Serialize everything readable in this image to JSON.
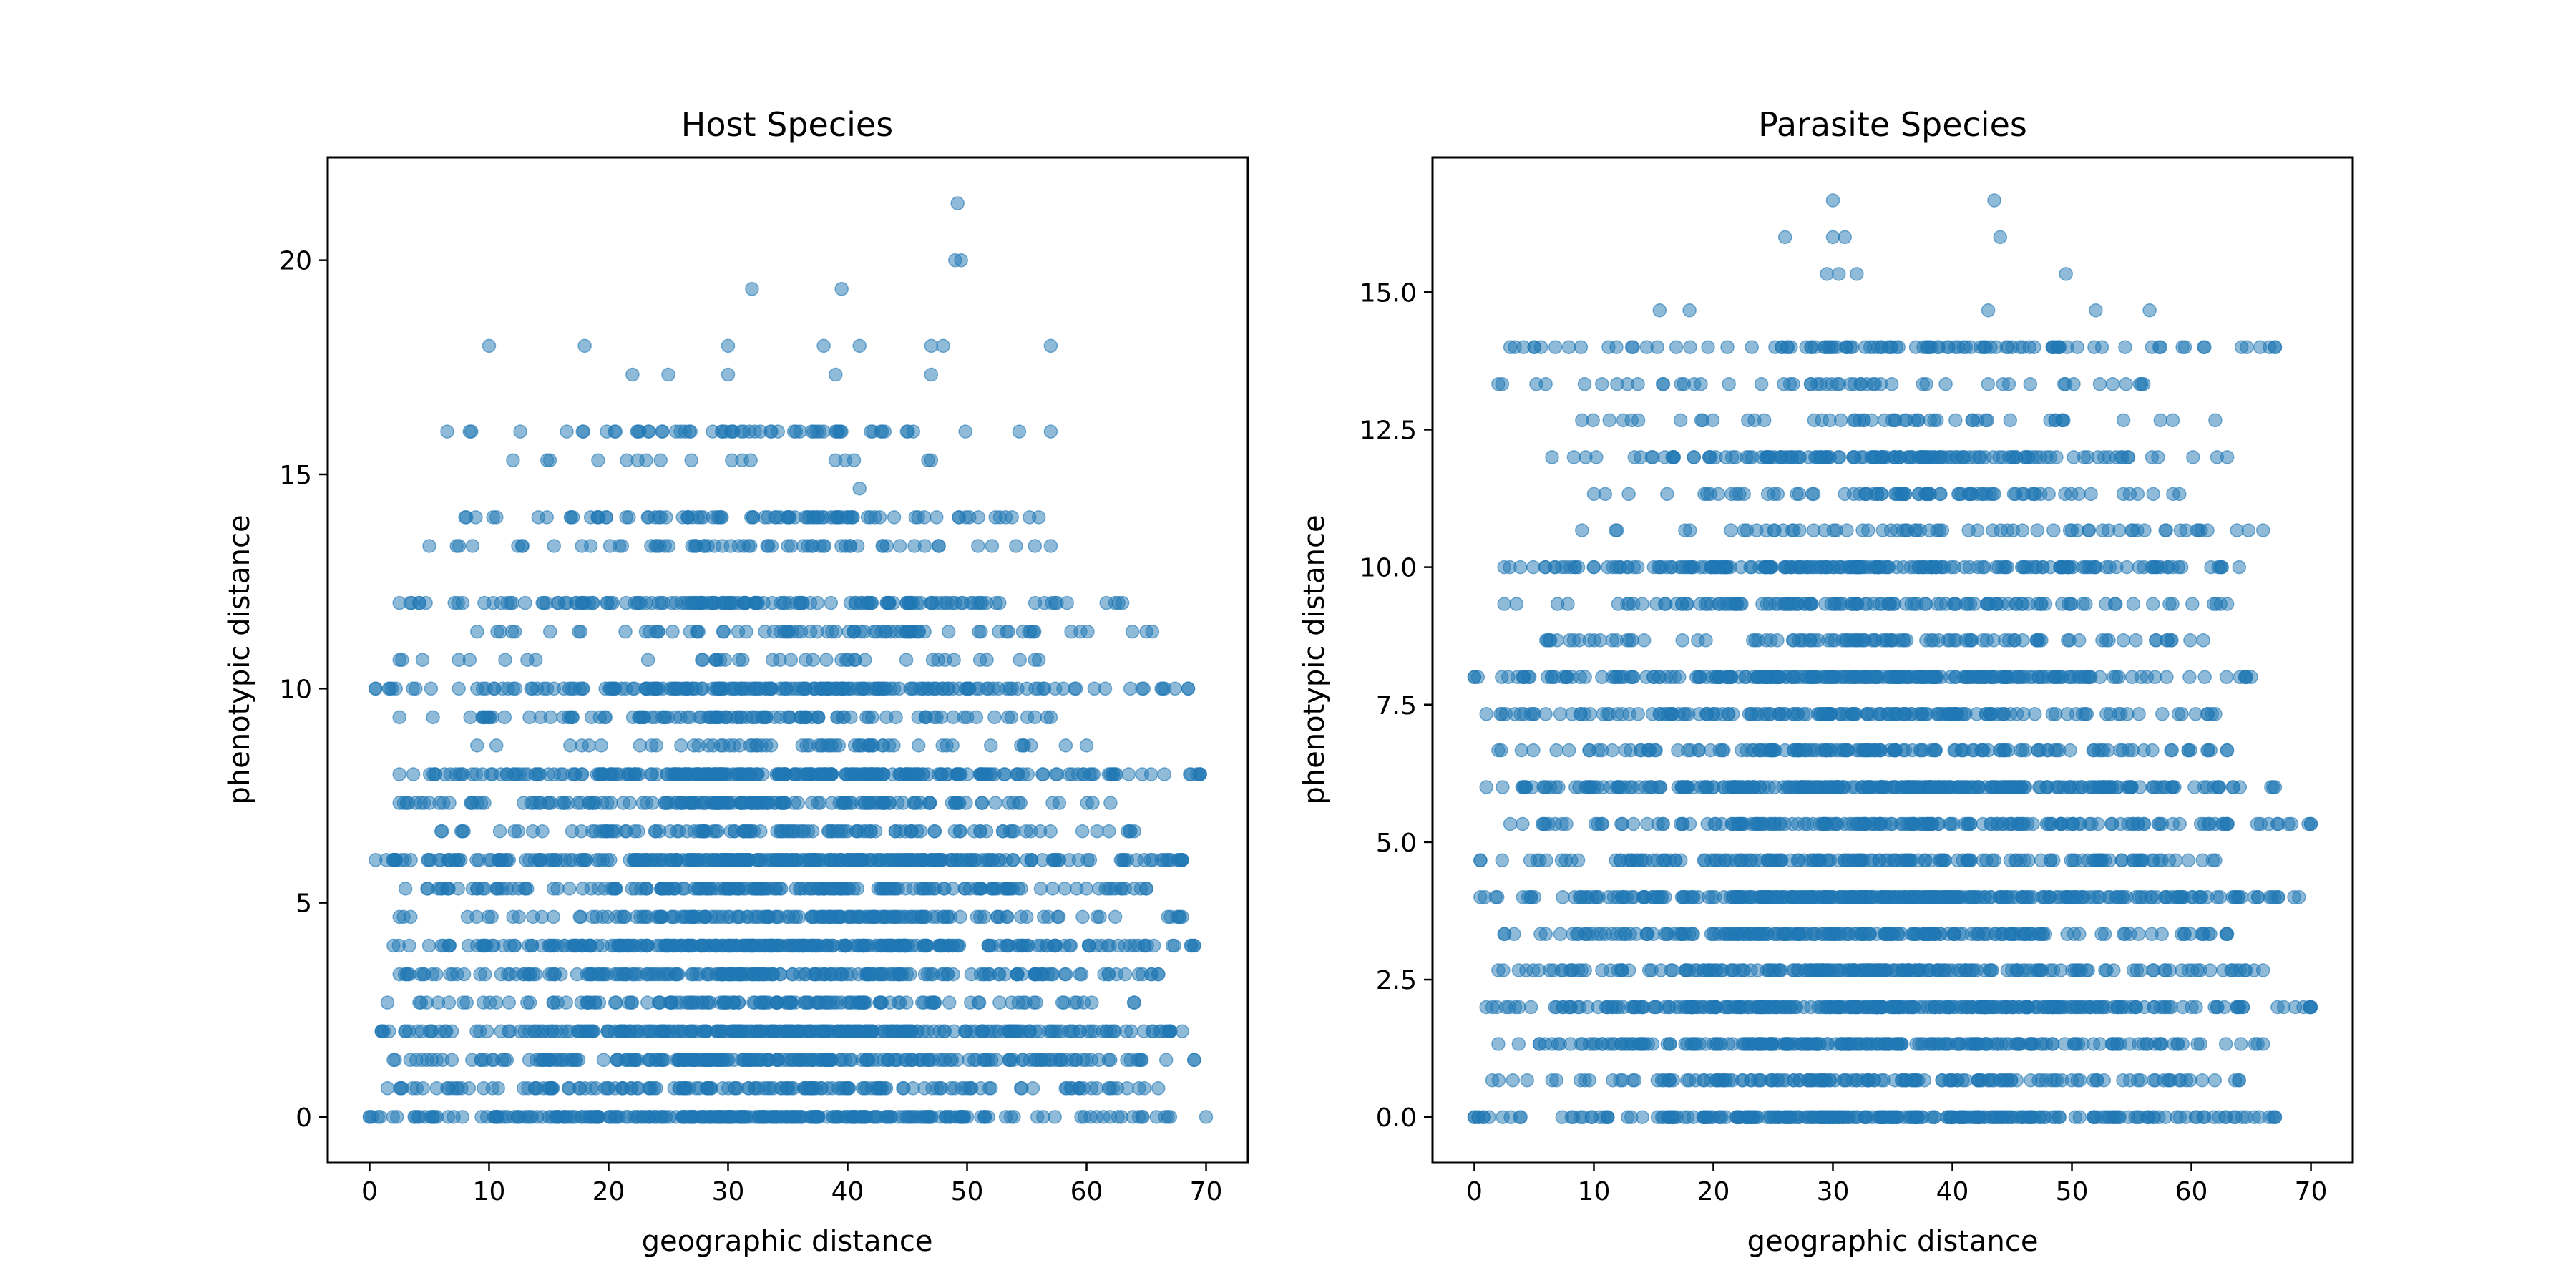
{
  "chart_data": [
    {
      "type": "scatter",
      "title": "Host Species",
      "xlabel": "geographic distance",
      "ylabel": "phenotypic distance",
      "xlim": [
        -3.5,
        73.5
      ],
      "ylim": [
        -1.07,
        22.4
      ],
      "xticks": [
        0,
        10,
        20,
        30,
        40,
        50,
        60,
        70
      ],
      "xtick_labels": [
        "0",
        "10",
        "20",
        "30",
        "40",
        "50",
        "60",
        "70"
      ],
      "yticks": [
        0,
        5,
        10,
        15,
        20
      ],
      "ytick_labels": [
        "0",
        "5",
        "10",
        "15",
        "20"
      ],
      "grid": false,
      "legend": "none",
      "marker_color": "#1f77b4",
      "marker_alpha": 0.5,
      "bands": [
        {
          "y": 0,
          "x": [
            0,
            67
          ],
          "density": 0.95
        },
        {
          "y": 0.67,
          "x": [
            1.5,
            66
          ],
          "density": 0.55
        },
        {
          "y": 1.33,
          "x": [
            2,
            69
          ],
          "density": 0.75
        },
        {
          "y": 2,
          "x": [
            1,
            68
          ],
          "density": 1.0
        },
        {
          "y": 2.67,
          "x": [
            1.5,
            64
          ],
          "density": 0.5
        },
        {
          "y": 3.33,
          "x": [
            2.5,
            66
          ],
          "density": 0.75
        },
        {
          "y": 4,
          "x": [
            2,
            69
          ],
          "density": 1.0
        },
        {
          "y": 4.67,
          "x": [
            2.5,
            68
          ],
          "density": 0.55
        },
        {
          "y": 5.33,
          "x": [
            3,
            65
          ],
          "density": 0.7
        },
        {
          "y": 6,
          "x": [
            0.5,
            68
          ],
          "density": 1.0
        },
        {
          "y": 6.67,
          "x": [
            6,
            64
          ],
          "density": 0.45
        },
        {
          "y": 7.33,
          "x": [
            2.5,
            62
          ],
          "density": 0.6
        },
        {
          "y": 8,
          "x": [
            2.5,
            69.5
          ],
          "density": 0.9
        },
        {
          "y": 8.67,
          "x": [
            9,
            60
          ],
          "density": 0.25
        },
        {
          "y": 9.33,
          "x": [
            2.5,
            57
          ],
          "density": 0.45
        },
        {
          "y": 10,
          "x": [
            0.5,
            68.5
          ],
          "density": 0.65
        },
        {
          "y": 10.67,
          "x": [
            2.5,
            56
          ],
          "density": 0.15
        },
        {
          "y": 11.33,
          "x": [
            9,
            65
          ],
          "density": 0.3
        },
        {
          "y": 12,
          "x": [
            2.5,
            63
          ],
          "density": 0.55
        },
        {
          "y": 13.33,
          "x": [
            5,
            57
          ],
          "density": 0.25
        },
        {
          "y": 14,
          "x": [
            8,
            56
          ],
          "density": 0.4
        },
        {
          "y": 15.33,
          "x": [
            12,
            47
          ],
          "density": 0.08
        },
        {
          "y": 16,
          "x": [
            6.5,
            57
          ],
          "density": 0.25
        }
      ],
      "points": [
        {
          "x": 10,
          "y": 18
        },
        {
          "x": 18,
          "y": 18
        },
        {
          "x": 30,
          "y": 18
        },
        {
          "x": 38,
          "y": 18
        },
        {
          "x": 41,
          "y": 18
        },
        {
          "x": 47,
          "y": 18
        },
        {
          "x": 48,
          "y": 18
        },
        {
          "x": 57,
          "y": 18
        },
        {
          "x": 25,
          "y": 17.33
        },
        {
          "x": 30,
          "y": 17.33
        },
        {
          "x": 39,
          "y": 17.33
        },
        {
          "x": 47,
          "y": 17.33
        },
        {
          "x": 32,
          "y": 19.33
        },
        {
          "x": 39.5,
          "y": 19.33
        },
        {
          "x": 49,
          "y": 20
        },
        {
          "x": 49.5,
          "y": 20
        },
        {
          "x": 49.2,
          "y": 21.33
        },
        {
          "x": 41,
          "y": 14.67
        },
        {
          "x": 22,
          "y": 17.33
        },
        {
          "x": 0,
          "y": 0
        },
        {
          "x": 70,
          "y": 0
        },
        {
          "x": 69,
          "y": 1.33
        },
        {
          "x": 69,
          "y": 4
        },
        {
          "x": 69.5,
          "y": 8
        },
        {
          "x": 68.5,
          "y": 10
        },
        {
          "x": 68,
          "y": 6
        },
        {
          "x": 67,
          "y": 2
        },
        {
          "x": 65.5,
          "y": 11.33
        },
        {
          "x": 0.5,
          "y": 10
        }
      ]
    },
    {
      "type": "scatter",
      "title": "Parasite Species",
      "xlabel": "geographic distance",
      "ylabel": "phenotypic distance",
      "xlim": [
        -3.5,
        73.5
      ],
      "ylim": [
        -0.83,
        17.45
      ],
      "xticks": [
        0,
        10,
        20,
        30,
        40,
        50,
        60,
        70
      ],
      "xtick_labels": [
        "0",
        "10",
        "20",
        "30",
        "40",
        "50",
        "60",
        "70"
      ],
      "yticks": [
        0,
        2.5,
        5,
        7.5,
        10,
        12.5,
        15
      ],
      "ytick_labels": [
        "0.0",
        "2.5",
        "5.0",
        "7.5",
        "10.0",
        "12.5",
        "15.0"
      ],
      "grid": false,
      "legend": "none",
      "marker_color": "#1f77b4",
      "marker_alpha": 0.5,
      "bands": [
        {
          "y": 0,
          "x": [
            0,
            67
          ],
          "density": 0.9
        },
        {
          "y": 0.67,
          "x": [
            1.5,
            64
          ],
          "density": 0.55
        },
        {
          "y": 1.33,
          "x": [
            2,
            66
          ],
          "density": 0.75
        },
        {
          "y": 2,
          "x": [
            1,
            70
          ],
          "density": 1.0
        },
        {
          "y": 2.67,
          "x": [
            2,
            66
          ],
          "density": 0.7
        },
        {
          "y": 3.33,
          "x": [
            2.5,
            63
          ],
          "density": 0.75
        },
        {
          "y": 4,
          "x": [
            0.5,
            69
          ],
          "density": 1.0
        },
        {
          "y": 4.67,
          "x": [
            0.5,
            62
          ],
          "density": 0.6
        },
        {
          "y": 5.33,
          "x": [
            3,
            70
          ],
          "density": 0.6
        },
        {
          "y": 6,
          "x": [
            1,
            67
          ],
          "density": 1.0
        },
        {
          "y": 6.67,
          "x": [
            2,
            63
          ],
          "density": 0.55
        },
        {
          "y": 7.33,
          "x": [
            1,
            62
          ],
          "density": 0.6
        },
        {
          "y": 8,
          "x": [
            0,
            65
          ],
          "density": 0.85
        },
        {
          "y": 8.67,
          "x": [
            6,
            61
          ],
          "density": 0.4
        },
        {
          "y": 9.33,
          "x": [
            2.5,
            63
          ],
          "density": 0.45
        },
        {
          "y": 10,
          "x": [
            2.5,
            64
          ],
          "density": 0.75
        },
        {
          "y": 10.67,
          "x": [
            9,
            66
          ],
          "density": 0.25
        },
        {
          "y": 11.33,
          "x": [
            10,
            59
          ],
          "density": 0.35
        },
        {
          "y": 12,
          "x": [
            6.5,
            63
          ],
          "density": 0.55
        },
        {
          "y": 12.67,
          "x": [
            9,
            62
          ],
          "density": 0.2
        },
        {
          "y": 13.33,
          "x": [
            2,
            56
          ],
          "density": 0.2
        },
        {
          "y": 14,
          "x": [
            3,
            67
          ],
          "density": 0.35
        }
      ],
      "points": [
        {
          "x": 15.5,
          "y": 14.67
        },
        {
          "x": 18,
          "y": 14.67
        },
        {
          "x": 43,
          "y": 14.67
        },
        {
          "x": 52,
          "y": 14.67
        },
        {
          "x": 56.5,
          "y": 14.67
        },
        {
          "x": 29.5,
          "y": 15.33
        },
        {
          "x": 30.5,
          "y": 15.33
        },
        {
          "x": 32,
          "y": 15.33
        },
        {
          "x": 49.5,
          "y": 15.33
        },
        {
          "x": 26,
          "y": 16
        },
        {
          "x": 30,
          "y": 16
        },
        {
          "x": 31,
          "y": 16
        },
        {
          "x": 44,
          "y": 16
        },
        {
          "x": 30,
          "y": 16.67
        },
        {
          "x": 43.5,
          "y": 16.67
        },
        {
          "x": 0,
          "y": 0
        },
        {
          "x": 66.5,
          "y": 0
        },
        {
          "x": 67,
          "y": 0
        },
        {
          "x": 70,
          "y": 2
        },
        {
          "x": 70,
          "y": 5.33
        },
        {
          "x": 67,
          "y": 14
        },
        {
          "x": 0,
          "y": 8
        }
      ]
    }
  ]
}
